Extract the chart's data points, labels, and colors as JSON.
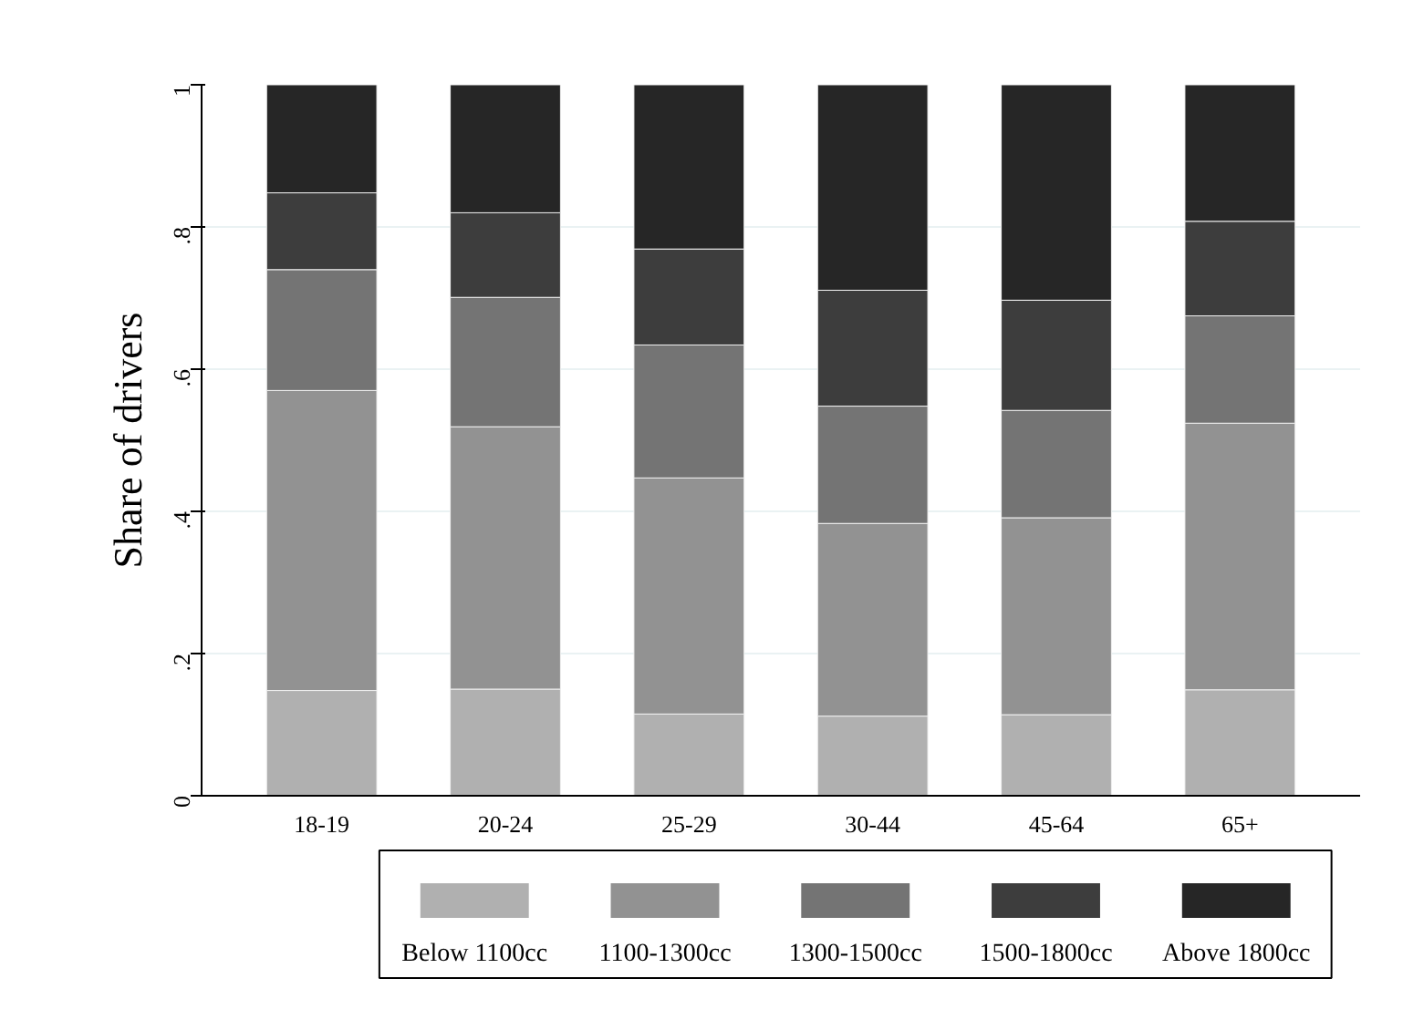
{
  "chart_data": {
    "type": "bar",
    "stacked": true,
    "ylabel": "Share of drivers",
    "categories": [
      "18-19",
      "20-24",
      "25-29",
      "30-44",
      "45-64",
      "65+"
    ],
    "series": [
      {
        "name": "Below 1100cc",
        "color": "#b0b0b0",
        "values": [
          0.148,
          0.15,
          0.115,
          0.112,
          0.114,
          0.149
        ]
      },
      {
        "name": "1100-1300cc",
        "color": "#929292",
        "values": [
          0.422,
          0.369,
          0.332,
          0.271,
          0.277,
          0.375
        ]
      },
      {
        "name": "1300-1500cc",
        "color": "#747474",
        "values": [
          0.17,
          0.182,
          0.187,
          0.165,
          0.151,
          0.151
        ]
      },
      {
        "name": "1500-1800cc",
        "color": "#3d3d3d",
        "values": [
          0.108,
          0.119,
          0.135,
          0.163,
          0.155,
          0.133
        ]
      },
      {
        "name": "Above 1800cc",
        "color": "#262626",
        "values": [
          0.152,
          0.18,
          0.231,
          0.289,
          0.303,
          0.192
        ]
      }
    ],
    "ylim": [
      0,
      1
    ],
    "yticks": [
      0,
      {
        "value": 0.2,
        "label": ".2"
      },
      {
        "value": 0.4,
        "label": ".4"
      },
      {
        "value": 0.6,
        "label": ".6"
      },
      {
        "value": 0.8,
        "label": ".8"
      },
      1
    ],
    "grid": "y",
    "legend": "bottom"
  }
}
